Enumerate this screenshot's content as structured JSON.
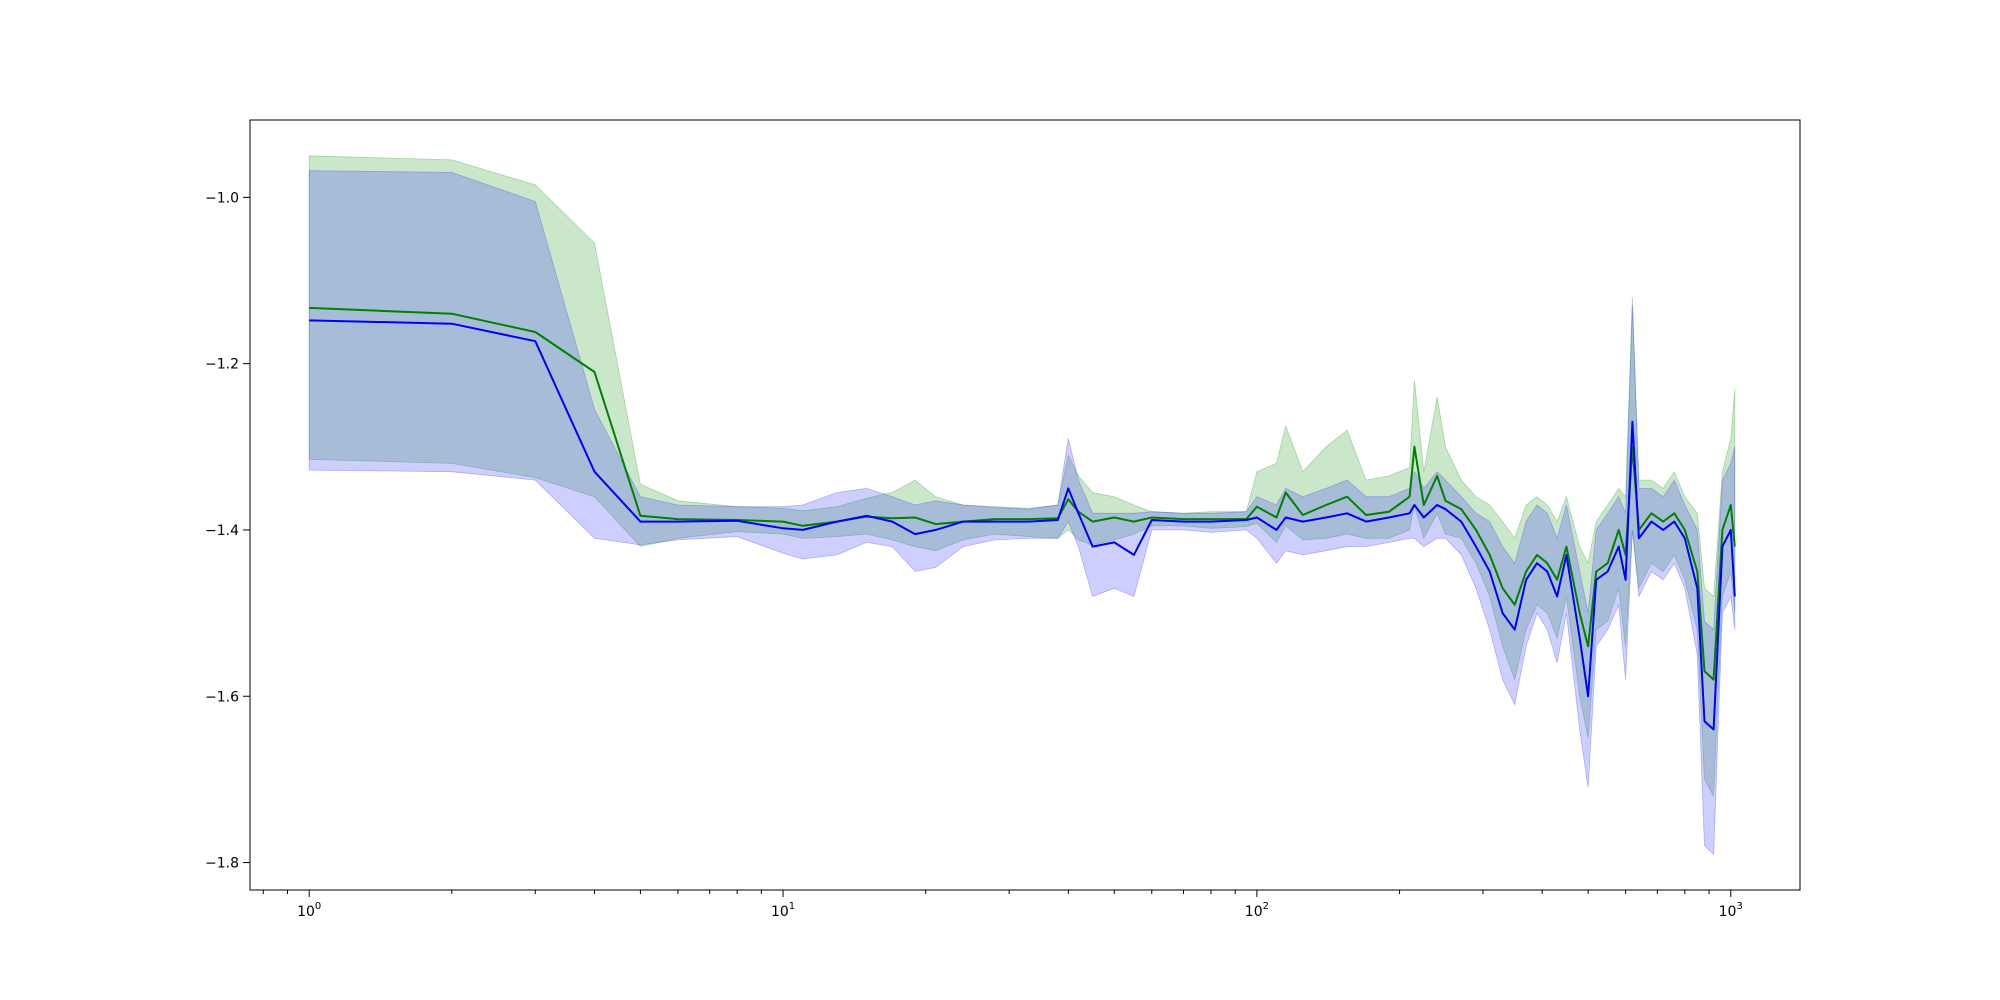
{
  "chart_data": {
    "type": "line",
    "title": "",
    "xlabel": "",
    "ylabel": "",
    "xscale": "log",
    "xlim": [
      0.75,
      1400
    ],
    "ylim": [
      -1.833,
      -0.907
    ],
    "grid": false,
    "x_ticks": [
      {
        "base": "10",
        "exp": "0",
        "value": 1
      },
      {
        "base": "10",
        "exp": "1",
        "value": 10
      },
      {
        "base": "10",
        "exp": "2",
        "value": 100
      },
      {
        "base": "10",
        "exp": "3",
        "value": 1000
      }
    ],
    "y_ticks": [
      {
        "label": "−1.0",
        "value": -1.0
      },
      {
        "label": "−1.2",
        "value": -1.2
      },
      {
        "label": "−1.4",
        "value": -1.4
      },
      {
        "label": "−1.6",
        "value": -1.6
      },
      {
        "label": "−1.8",
        "value": -1.8
      }
    ],
    "series": [
      {
        "color": "#008000",
        "band_color": "#2ca02c",
        "points": [
          [
            1,
            -1.133,
            -0.95,
            -1.315
          ],
          [
            2,
            -1.14,
            -0.955,
            -1.32
          ],
          [
            3,
            -1.162,
            -0.985,
            -1.337
          ],
          [
            4,
            -1.21,
            -1.055,
            -1.36
          ],
          [
            5,
            -1.383,
            -1.345,
            -1.42
          ],
          [
            6,
            -1.387,
            -1.365,
            -1.41
          ],
          [
            8,
            -1.388,
            -1.372,
            -1.402
          ],
          [
            10,
            -1.39,
            -1.374,
            -1.405
          ],
          [
            11,
            -1.395,
            -1.377,
            -1.41
          ],
          [
            13,
            -1.39,
            -1.372,
            -1.408
          ],
          [
            15,
            -1.384,
            -1.362,
            -1.405
          ],
          [
            17,
            -1.386,
            -1.355,
            -1.412
          ],
          [
            19,
            -1.385,
            -1.34,
            -1.42
          ],
          [
            21,
            -1.393,
            -1.36,
            -1.425
          ],
          [
            24,
            -1.39,
            -1.37,
            -1.412
          ],
          [
            28,
            -1.387,
            -1.372,
            -1.405
          ],
          [
            33,
            -1.387,
            -1.374,
            -1.408
          ],
          [
            38,
            -1.386,
            -1.37,
            -1.41
          ],
          [
            40,
            -1.363,
            -1.31,
            -1.4
          ],
          [
            42,
            -1.378,
            -1.335,
            -1.412
          ],
          [
            45,
            -1.39,
            -1.355,
            -1.418
          ],
          [
            50,
            -1.385,
            -1.36,
            -1.412
          ],
          [
            55,
            -1.39,
            -1.37,
            -1.405
          ],
          [
            60,
            -1.385,
            -1.378,
            -1.395
          ],
          [
            70,
            -1.387,
            -1.38,
            -1.395
          ],
          [
            80,
            -1.387,
            -1.378,
            -1.398
          ],
          [
            95,
            -1.387,
            -1.378,
            -1.396
          ],
          [
            100,
            -1.372,
            -1.33,
            -1.392
          ],
          [
            110,
            -1.385,
            -1.32,
            -1.415
          ],
          [
            115,
            -1.355,
            -1.275,
            -1.395
          ],
          [
            125,
            -1.382,
            -1.33,
            -1.412
          ],
          [
            140,
            -1.37,
            -1.3,
            -1.41
          ],
          [
            155,
            -1.36,
            -1.28,
            -1.405
          ],
          [
            170,
            -1.382,
            -1.34,
            -1.41
          ],
          [
            190,
            -1.378,
            -1.335,
            -1.41
          ],
          [
            210,
            -1.36,
            -1.325,
            -1.4
          ],
          [
            215,
            -1.3,
            -1.22,
            -1.37
          ],
          [
            225,
            -1.37,
            -1.33,
            -1.41
          ],
          [
            240,
            -1.335,
            -1.24,
            -1.38
          ],
          [
            250,
            -1.365,
            -1.3,
            -1.405
          ],
          [
            270,
            -1.375,
            -1.34,
            -1.41
          ],
          [
            290,
            -1.4,
            -1.36,
            -1.44
          ],
          [
            310,
            -1.43,
            -1.37,
            -1.48
          ],
          [
            330,
            -1.47,
            -1.39,
            -1.54
          ],
          [
            350,
            -1.49,
            -1.41,
            -1.58
          ],
          [
            370,
            -1.45,
            -1.37,
            -1.52
          ],
          [
            390,
            -1.43,
            -1.36,
            -1.49
          ],
          [
            410,
            -1.44,
            -1.37,
            -1.5
          ],
          [
            430,
            -1.46,
            -1.39,
            -1.53
          ],
          [
            450,
            -1.42,
            -1.36,
            -1.48
          ],
          [
            480,
            -1.5,
            -1.42,
            -1.6
          ],
          [
            500,
            -1.54,
            -1.44,
            -1.65
          ],
          [
            520,
            -1.45,
            -1.39,
            -1.52
          ],
          [
            550,
            -1.44,
            -1.37,
            -1.51
          ],
          [
            580,
            -1.4,
            -1.35,
            -1.47
          ],
          [
            600,
            -1.43,
            -1.36,
            -1.54
          ],
          [
            620,
            -1.3,
            -1.12,
            -1.4
          ],
          [
            640,
            -1.4,
            -1.34,
            -1.47
          ],
          [
            680,
            -1.38,
            -1.34,
            -1.44
          ],
          [
            720,
            -1.39,
            -1.35,
            -1.45
          ],
          [
            760,
            -1.38,
            -1.33,
            -1.43
          ],
          [
            800,
            -1.4,
            -1.36,
            -1.46
          ],
          [
            850,
            -1.45,
            -1.38,
            -1.52
          ],
          [
            880,
            -1.57,
            -1.47,
            -1.7
          ],
          [
            920,
            -1.58,
            -1.48,
            -1.72
          ],
          [
            960,
            -1.4,
            -1.33,
            -1.48
          ],
          [
            1000,
            -1.37,
            -1.29,
            -1.45
          ],
          [
            1020,
            -1.42,
            -1.23,
            -1.5
          ]
        ]
      },
      {
        "color": "#0000ff",
        "band_color": "#4040ff",
        "points": [
          [
            1,
            -1.148,
            -0.968,
            -1.328
          ],
          [
            2,
            -1.152,
            -0.97,
            -1.33
          ],
          [
            3,
            -1.173,
            -1.005,
            -1.34
          ],
          [
            4,
            -1.33,
            -1.255,
            -1.41
          ],
          [
            5,
            -1.39,
            -1.36,
            -1.418
          ],
          [
            6,
            -1.39,
            -1.37,
            -1.412
          ],
          [
            8,
            -1.389,
            -1.372,
            -1.408
          ],
          [
            10,
            -1.398,
            -1.372,
            -1.428
          ],
          [
            11,
            -1.4,
            -1.37,
            -1.435
          ],
          [
            13,
            -1.39,
            -1.355,
            -1.43
          ],
          [
            15,
            -1.383,
            -1.35,
            -1.415
          ],
          [
            17,
            -1.39,
            -1.36,
            -1.42
          ],
          [
            19,
            -1.405,
            -1.37,
            -1.45
          ],
          [
            21,
            -1.4,
            -1.365,
            -1.445
          ],
          [
            24,
            -1.39,
            -1.37,
            -1.42
          ],
          [
            28,
            -1.39,
            -1.373,
            -1.412
          ],
          [
            33,
            -1.39,
            -1.375,
            -1.41
          ],
          [
            38,
            -1.388,
            -1.37,
            -1.41
          ],
          [
            40,
            -1.35,
            -1.29,
            -1.39
          ],
          [
            42,
            -1.38,
            -1.34,
            -1.42
          ],
          [
            45,
            -1.42,
            -1.38,
            -1.48
          ],
          [
            50,
            -1.415,
            -1.38,
            -1.47
          ],
          [
            55,
            -1.43,
            -1.38,
            -1.48
          ],
          [
            60,
            -1.388,
            -1.378,
            -1.4
          ],
          [
            70,
            -1.39,
            -1.38,
            -1.4
          ],
          [
            80,
            -1.39,
            -1.38,
            -1.403
          ],
          [
            95,
            -1.388,
            -1.378,
            -1.4
          ],
          [
            100,
            -1.385,
            -1.36,
            -1.41
          ],
          [
            110,
            -1.4,
            -1.37,
            -1.44
          ],
          [
            115,
            -1.385,
            -1.35,
            -1.425
          ],
          [
            125,
            -1.39,
            -1.36,
            -1.43
          ],
          [
            140,
            -1.385,
            -1.35,
            -1.425
          ],
          [
            155,
            -1.38,
            -1.34,
            -1.42
          ],
          [
            170,
            -1.39,
            -1.36,
            -1.42
          ],
          [
            190,
            -1.385,
            -1.36,
            -1.415
          ],
          [
            210,
            -1.38,
            -1.35,
            -1.41
          ],
          [
            215,
            -1.37,
            -1.33,
            -1.41
          ],
          [
            225,
            -1.385,
            -1.35,
            -1.42
          ],
          [
            240,
            -1.37,
            -1.33,
            -1.41
          ],
          [
            250,
            -1.375,
            -1.34,
            -1.41
          ],
          [
            270,
            -1.39,
            -1.36,
            -1.43
          ],
          [
            290,
            -1.42,
            -1.38,
            -1.47
          ],
          [
            310,
            -1.45,
            -1.39,
            -1.52
          ],
          [
            330,
            -1.5,
            -1.42,
            -1.58
          ],
          [
            350,
            -1.52,
            -1.44,
            -1.61
          ],
          [
            370,
            -1.46,
            -1.39,
            -1.54
          ],
          [
            390,
            -1.44,
            -1.37,
            -1.5
          ],
          [
            410,
            -1.45,
            -1.38,
            -1.52
          ],
          [
            430,
            -1.48,
            -1.41,
            -1.56
          ],
          [
            450,
            -1.43,
            -1.37,
            -1.5
          ],
          [
            480,
            -1.53,
            -1.45,
            -1.64
          ],
          [
            500,
            -1.6,
            -1.5,
            -1.71
          ],
          [
            520,
            -1.46,
            -1.4,
            -1.54
          ],
          [
            550,
            -1.45,
            -1.38,
            -1.52
          ],
          [
            580,
            -1.42,
            -1.36,
            -1.49
          ],
          [
            600,
            -1.46,
            -1.38,
            -1.58
          ],
          [
            620,
            -1.27,
            -1.13,
            -1.4
          ],
          [
            640,
            -1.41,
            -1.35,
            -1.48
          ],
          [
            680,
            -1.39,
            -1.35,
            -1.45
          ],
          [
            720,
            -1.4,
            -1.36,
            -1.46
          ],
          [
            760,
            -1.39,
            -1.34,
            -1.44
          ],
          [
            800,
            -1.41,
            -1.37,
            -1.47
          ],
          [
            850,
            -1.47,
            -1.4,
            -1.55
          ],
          [
            880,
            -1.63,
            -1.51,
            -1.78
          ],
          [
            920,
            -1.64,
            -1.52,
            -1.79
          ],
          [
            960,
            -1.42,
            -1.34,
            -1.5
          ],
          [
            1000,
            -1.4,
            -1.32,
            -1.48
          ],
          [
            1020,
            -1.48,
            -1.3,
            -1.52
          ]
        ]
      }
    ]
  }
}
